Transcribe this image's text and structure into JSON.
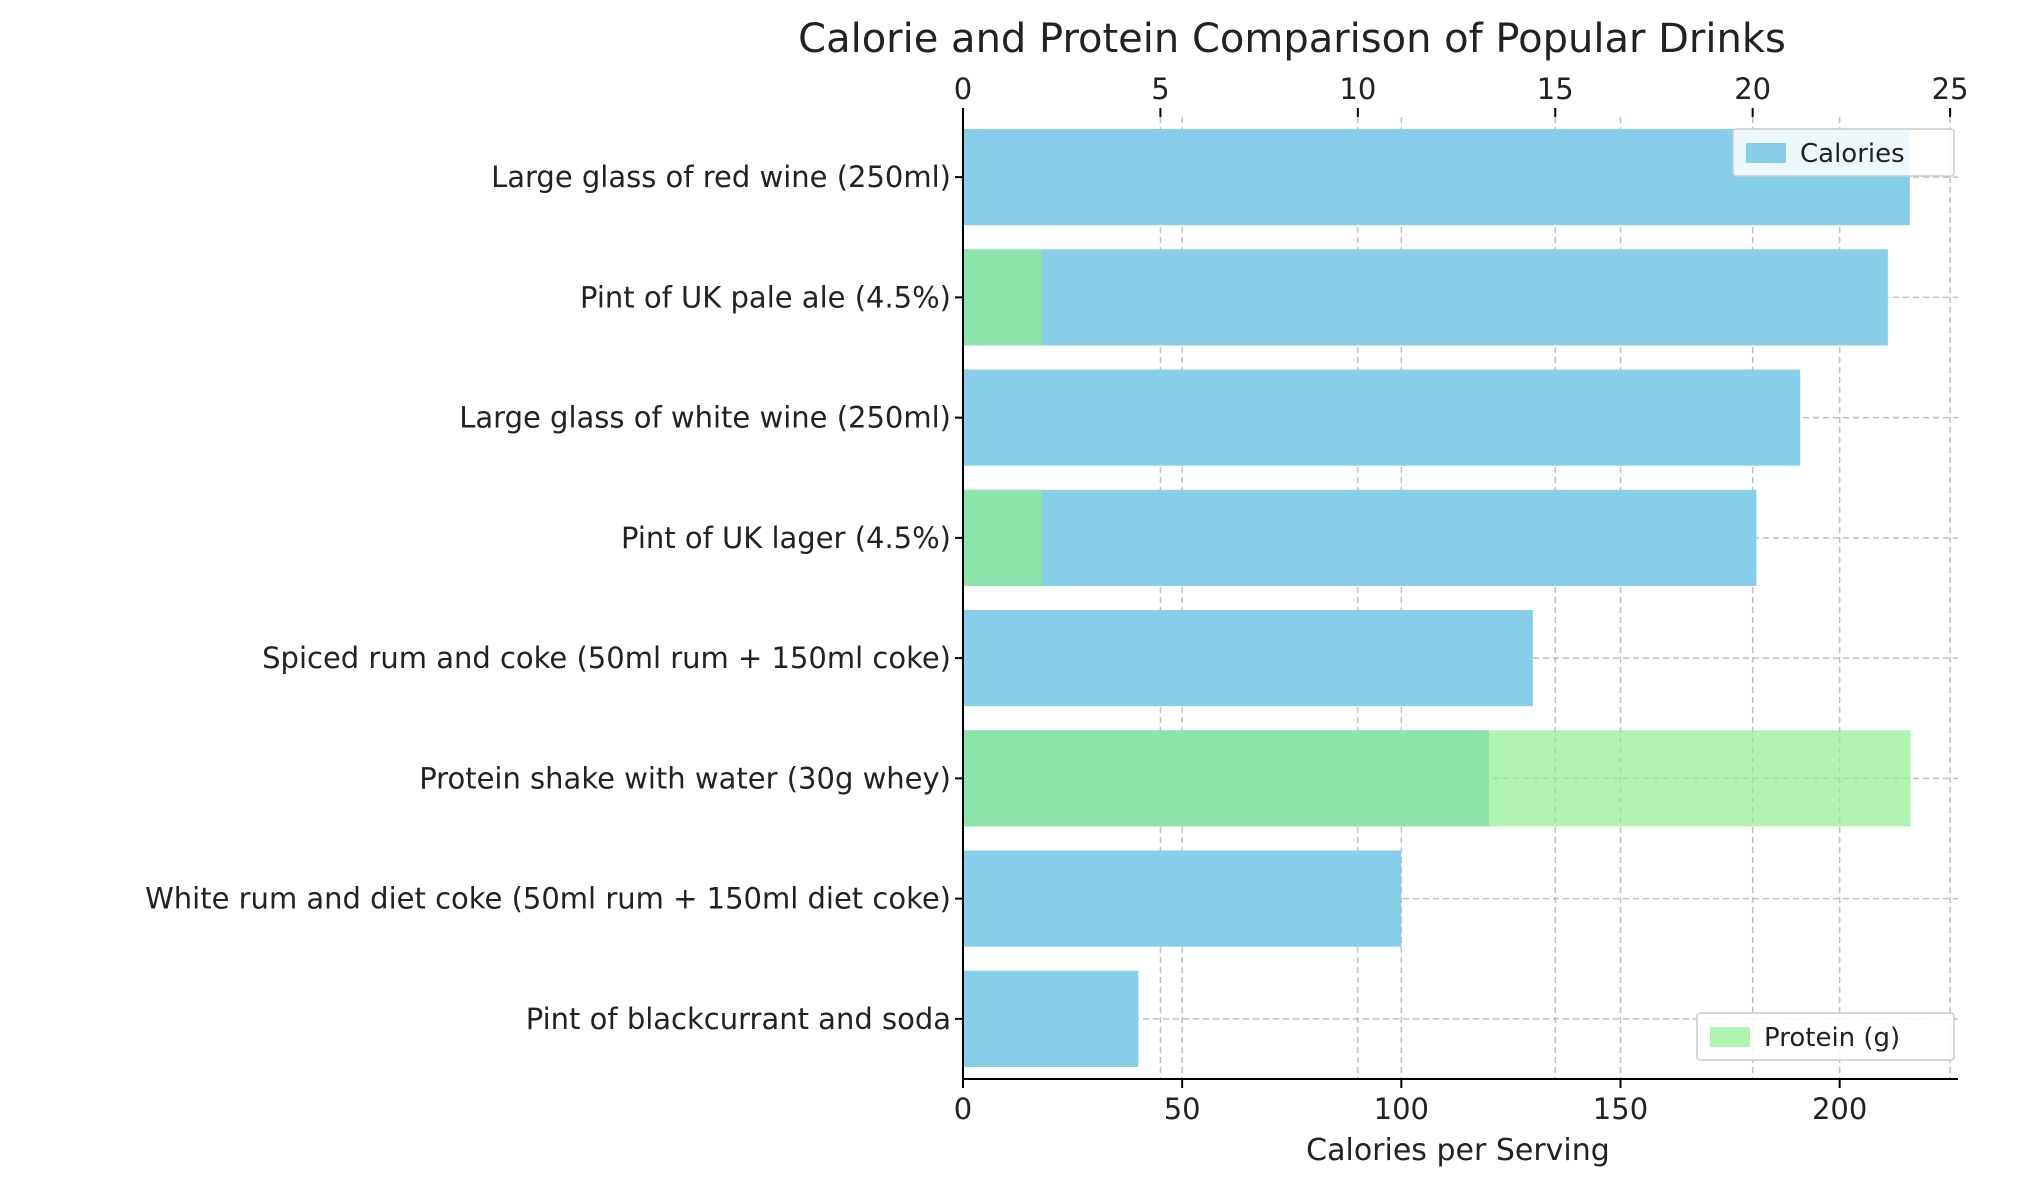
{
  "chart_data": {
    "type": "bar",
    "orientation": "horizontal",
    "title": "Calorie and Protein Comparison of Popular Drinks",
    "xlabel": "Calories per Serving",
    "categories": [
      "Large glass of red wine (250ml)",
      "Pint of UK pale ale (4.5%)",
      "Large glass of white wine (250ml)",
      "Pint of UK lager (4.5%)",
      "Spiced rum and coke (50ml rum + 150ml coke)",
      "Protein shake with water (30g whey)",
      "White rum and diet coke (50ml rum + 150ml diet coke)",
      "Pint of blackcurrant and soda"
    ],
    "series": [
      {
        "name": "Calories",
        "axis": "bottom",
        "color": "#87CEEB",
        "values": [
          216,
          211,
          191,
          181,
          130,
          120,
          100,
          40
        ]
      },
      {
        "name": "Protein (g)",
        "axis": "top",
        "color": "#90EE90",
        "values": [
          0,
          2,
          0,
          2,
          0,
          24,
          0,
          0
        ]
      }
    ],
    "xlim_bottom": [
      0,
      227
    ],
    "xlim_top": [
      0,
      25.2
    ],
    "bottom_ticks": [
      0,
      50,
      100,
      150,
      200
    ],
    "top_ticks": [
      0,
      5,
      10,
      15,
      20,
      25
    ],
    "grid": true,
    "legend": [
      {
        "label": "Calories",
        "placement": "top-right"
      },
      {
        "label": "Protein (g)",
        "placement": "bottom-right"
      }
    ]
  }
}
